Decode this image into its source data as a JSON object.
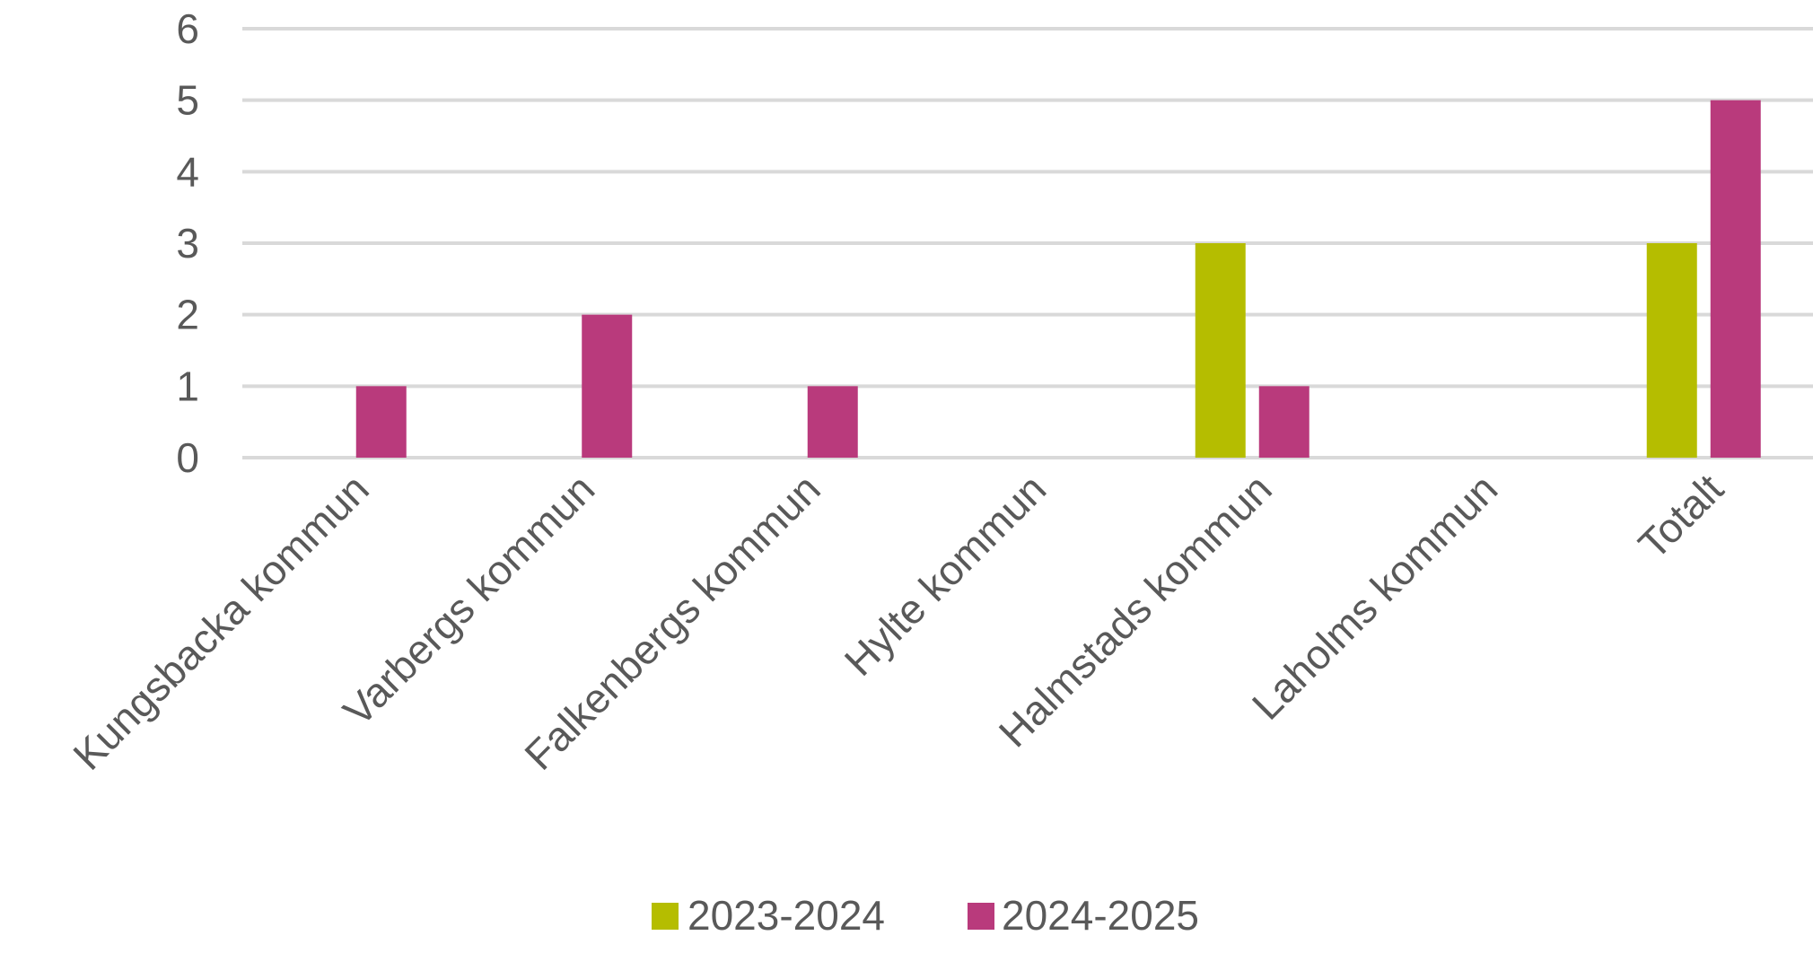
{
  "chart_data": {
    "type": "bar",
    "categories": [
      "Kungsbacka kommun",
      "Varbergs kommun",
      "Falkenbergs kommun",
      "Hylte kommun",
      "Halmstads kommun",
      "Laholms kommun",
      "Totalt"
    ],
    "series": [
      {
        "name": "2023-2024",
        "color": "#b5bd00",
        "values": [
          0,
          0,
          0,
          0,
          3,
          0,
          3
        ]
      },
      {
        "name": "2024-2025",
        "color": "#b93a7c",
        "values": [
          1,
          2,
          1,
          0,
          1,
          0,
          5
        ]
      }
    ],
    "yticks": [
      "0",
      "1",
      "2",
      "3",
      "4",
      "5",
      "6"
    ],
    "ylim": [
      0,
      6
    ],
    "grid": true,
    "legend_position": "bottom",
    "title": "",
    "xlabel": "",
    "ylabel": ""
  }
}
